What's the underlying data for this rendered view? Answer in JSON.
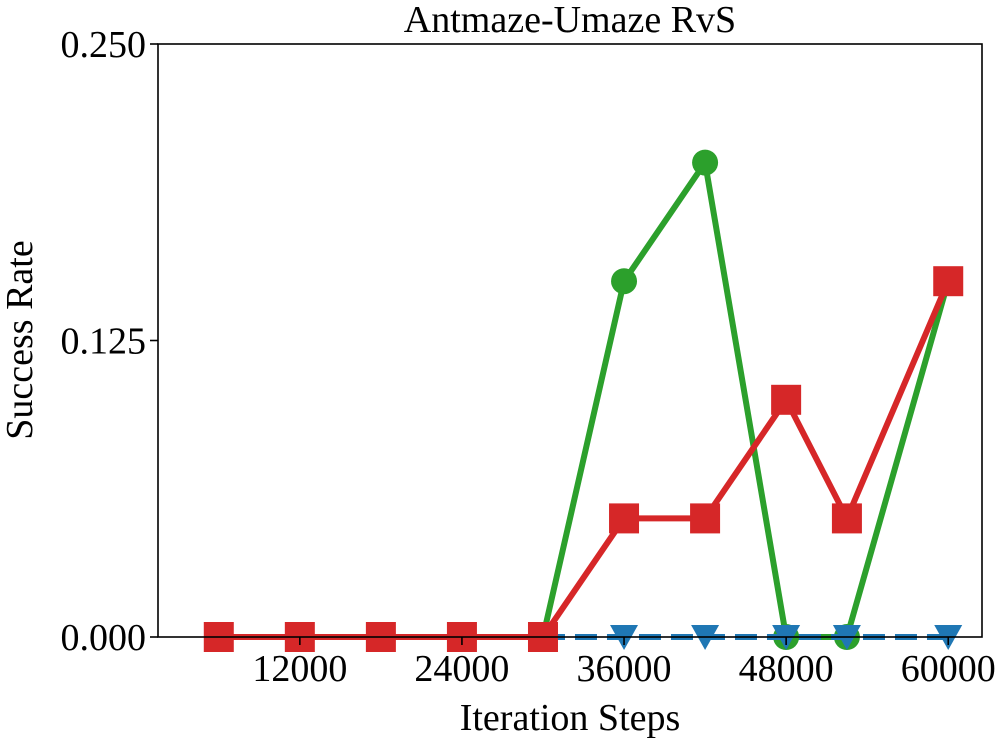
{
  "chart_data": {
    "type": "line",
    "title": "Antmaze-Umaze RvS",
    "xlabel": "Iteration Steps",
    "ylabel": "Success Rate",
    "xlim": [
      1500,
      62500
    ],
    "ylim": [
      0,
      0.25
    ],
    "xticks": [
      12000,
      24000,
      36000,
      48000,
      60000
    ],
    "xtick_labels": [
      "12000",
      "24000",
      "36000",
      "48000",
      "60000"
    ],
    "yticks": [
      0,
      0.125,
      0.25
    ],
    "ytick_labels": [
      "0.000",
      "0.125",
      "0.250"
    ],
    "grid": false,
    "legend": "none",
    "series": [
      {
        "color": "#2ca02c",
        "marker": "circle",
        "x": [
          30000,
          36000,
          42000,
          48000,
          52500,
          60000
        ],
        "y": [
          0,
          0.15,
          0.2,
          0,
          0,
          0.15
        ]
      },
      {
        "color": "#1f77b4",
        "marker": "triangle-down",
        "linestyle": "dashed",
        "x": [
          30000,
          36000,
          42000,
          48000,
          52500,
          60000
        ],
        "y": [
          0,
          0,
          0,
          0,
          0,
          0
        ]
      },
      {
        "color": "#d62728",
        "marker": "square",
        "x": [
          6000,
          12000,
          18000,
          24000,
          30000,
          36000,
          42000,
          48000,
          52500,
          60000
        ],
        "y": [
          0,
          0,
          0,
          0,
          0,
          0.05,
          0.05,
          0.1,
          0.05,
          0.15
        ]
      }
    ]
  }
}
